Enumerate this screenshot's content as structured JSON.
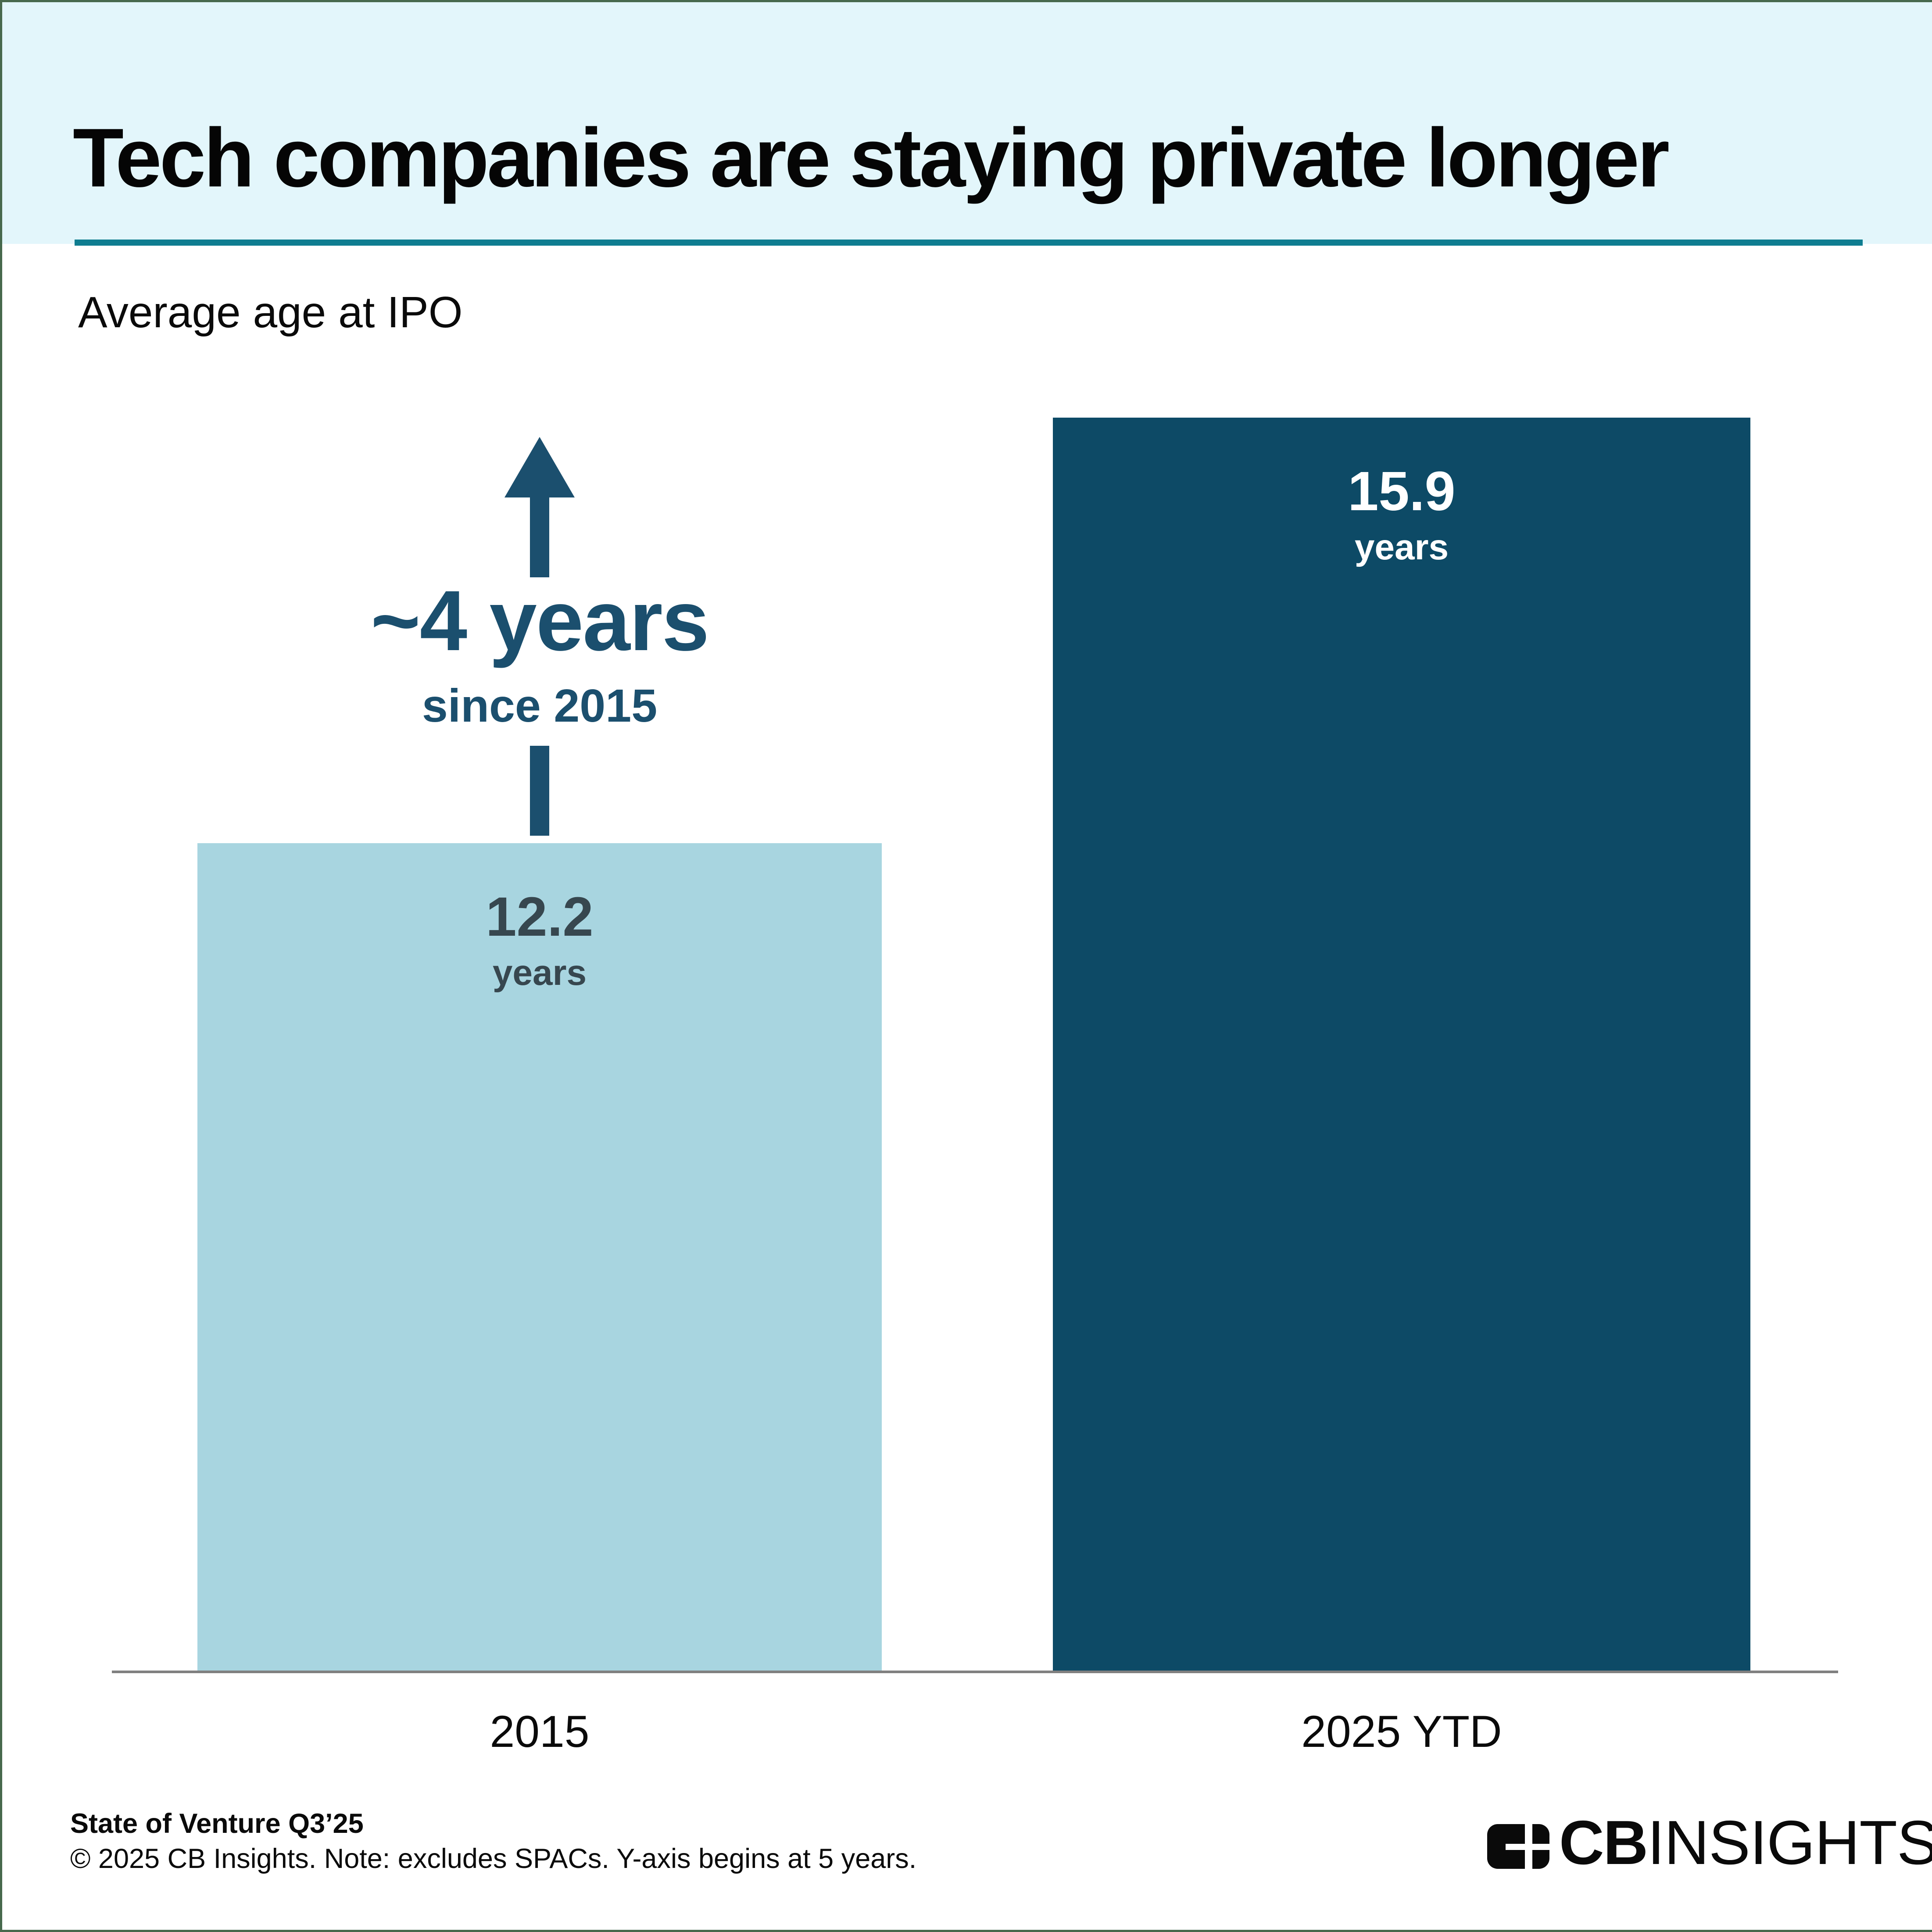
{
  "header": {
    "title": "Tech companies are staying private longer"
  },
  "chart_data": {
    "type": "bar",
    "title": "Average age at IPO",
    "categories": [
      "2015",
      "2025 YTD"
    ],
    "values": [
      12.2,
      15.9
    ],
    "value_suffix": "years",
    "ybase": 5,
    "ylim": [
      5,
      16.5
    ],
    "grid": false,
    "legend": "none",
    "bars": [
      {
        "label": "2015",
        "value": 12.2,
        "color": "#a8d5e0",
        "label_color": "#37474f"
      },
      {
        "label": "2025 YTD",
        "value": 15.9,
        "color": "#0d4a66",
        "label_color": "#ffffff"
      }
    ],
    "annotation": {
      "headline": "~4 years",
      "subtext": "since 2015",
      "color": "#1b4f6e",
      "icon": "arrow-up"
    }
  },
  "footer": {
    "source_line": "State of Venture Q3’25",
    "copyright_line": "© 2025 CB Insights. Note: excludes SPACs. Y-axis begins at 5 years.",
    "logo": {
      "cb": "CB",
      "insights": "INSIGHTS"
    }
  },
  "colors": {
    "header_bg": "#e3f6fb",
    "header_rule_teal": "#0e7d90",
    "bar_2015": "#a8d5e0",
    "bar_2025": "#0d4a66",
    "annotation": "#1b4f6e",
    "axis_line": "#808080",
    "page_border": "#47694d",
    "title_text": "#050505"
  }
}
